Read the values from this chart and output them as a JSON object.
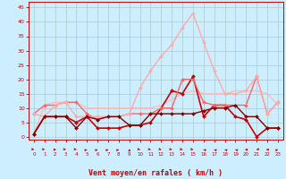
{
  "title": "",
  "xlabel": "Vent moyen/en rafales ( km/h )",
  "xlim": [
    -0.5,
    23.5
  ],
  "ylim": [
    -1,
    47
  ],
  "yticks": [
    0,
    5,
    10,
    15,
    20,
    25,
    30,
    35,
    40,
    45
  ],
  "xticks": [
    0,
    1,
    2,
    3,
    4,
    5,
    6,
    7,
    8,
    9,
    10,
    11,
    12,
    13,
    14,
    15,
    16,
    17,
    18,
    19,
    20,
    21,
    22,
    23
  ],
  "background_color": "#cceeff",
  "grid_color": "#aacccc",
  "series": [
    {
      "x": [
        0,
        1,
        2,
        3,
        4,
        5,
        6,
        7,
        8,
        9,
        10,
        11,
        12,
        13,
        14,
        15,
        16,
        17,
        18,
        19,
        20,
        21,
        22,
        23
      ],
      "y": [
        1,
        7,
        7,
        7,
        5,
        7,
        3,
        3,
        3,
        4,
        4,
        5,
        10,
        16,
        15,
        21,
        7,
        11,
        11,
        7,
        6,
        0,
        3,
        3
      ],
      "color": "#cc0000",
      "lw": 1.2,
      "marker": "D",
      "ms": 2.0
    },
    {
      "x": [
        0,
        1,
        2,
        3,
        4,
        5,
        6,
        7,
        8,
        9,
        10,
        11,
        12,
        13,
        14,
        15,
        16,
        17,
        18,
        19,
        20,
        21,
        22,
        23
      ],
      "y": [
        8,
        11,
        11,
        12,
        12,
        8,
        6,
        7,
        7,
        8,
        8,
        8,
        10,
        10,
        20,
        20,
        12,
        11,
        11,
        11,
        11,
        21,
        8,
        12
      ],
      "color": "#ff6666",
      "lw": 1.0,
      "marker": "D",
      "ms": 2.0
    },
    {
      "x": [
        0,
        1,
        2,
        3,
        4,
        5,
        6,
        7,
        8,
        9,
        10,
        11,
        12,
        13,
        14,
        15,
        16,
        17,
        18,
        19,
        20,
        21,
        22,
        23
      ],
      "y": [
        8,
        7,
        11,
        12,
        7,
        7,
        7,
        7,
        7,
        8,
        17,
        23,
        28,
        32,
        38,
        43,
        33,
        23,
        15,
        15,
        16,
        21,
        8,
        12
      ],
      "color": "#ffaaaa",
      "lw": 1.0,
      "marker": "D",
      "ms": 2.0
    },
    {
      "x": [
        0,
        1,
        2,
        3,
        4,
        5,
        6,
        7,
        8,
        9,
        10,
        11,
        12,
        13,
        14,
        15,
        16,
        17,
        18,
        19,
        20,
        21,
        22,
        23
      ],
      "y": [
        1,
        7,
        7,
        7,
        3,
        7,
        6,
        7,
        7,
        4,
        4,
        8,
        8,
        8,
        8,
        8,
        9,
        10,
        10,
        11,
        7,
        7,
        3,
        3
      ],
      "color": "#880000",
      "lw": 1.0,
      "marker": "D",
      "ms": 2.0
    },
    {
      "x": [
        0,
        1,
        2,
        3,
        4,
        5,
        6,
        7,
        8,
        9,
        10,
        11,
        12,
        13,
        14,
        15,
        16,
        17,
        18,
        19,
        20,
        21,
        22,
        23
      ],
      "y": [
        1,
        11,
        12,
        12,
        12,
        10,
        10,
        10,
        10,
        10,
        10,
        10,
        11,
        13,
        15,
        16,
        15,
        15,
        15,
        16,
        16,
        16,
        15,
        11
      ],
      "color": "#ffbbbb",
      "lw": 1.0,
      "marker": null,
      "ms": 0
    }
  ],
  "wind_dirs_deg": [
    45,
    45,
    90,
    45,
    45,
    135,
    135,
    135,
    135,
    180,
    45,
    45,
    45,
    45,
    45,
    45,
    225,
    225,
    225,
    225,
    270,
    315,
    270,
    135
  ]
}
